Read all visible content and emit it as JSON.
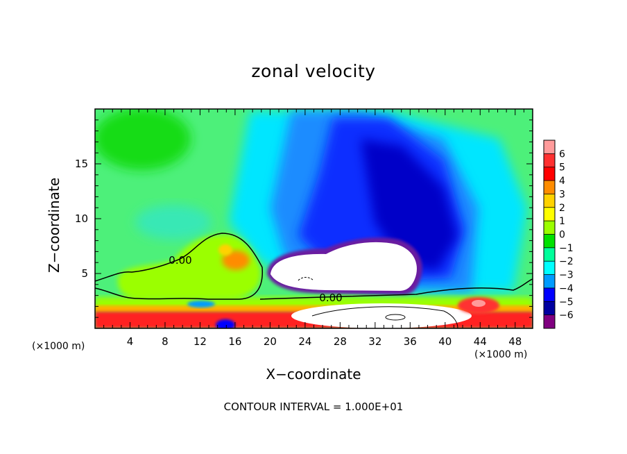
{
  "chart_data": {
    "type": "heatmap",
    "title": "zonal velocity",
    "xlabel": "X−coordinate",
    "ylabel": "Z−coordinate",
    "x_unit_left": "(×1000 m)",
    "x_unit_right": "(×1000 m)",
    "xlim": [
      0,
      50
    ],
    "ylim": [
      0,
      20
    ],
    "x_ticks": [
      4,
      8,
      12,
      16,
      20,
      24,
      28,
      32,
      36,
      40,
      44,
      48
    ],
    "y_ticks": [
      5,
      10,
      15
    ],
    "contour_labels": [
      "0.00",
      "0.00"
    ],
    "footnote": "CONTOUR INTERVAL = 1.000E+01",
    "colorbar": {
      "levels": [
        "6",
        "5",
        "4",
        "3",
        "2",
        "1",
        "0",
        "−1",
        "−2",
        "−3",
        "−4",
        "−5",
        "−6"
      ],
      "colors": [
        "#ff9b9b",
        "#ff3030",
        "#ff0000",
        "#ff8c00",
        "#ffd200",
        "#ffff00",
        "#9bff00",
        "#00e100",
        "#00ff9b",
        "#00ffff",
        "#009bff",
        "#0000ff",
        "#0000a0",
        "#800080"
      ]
    },
    "regions": [
      {
        "label": "background",
        "x": [
          0,
          50
        ],
        "z": [
          0,
          20
        ],
        "value": 0
      },
      {
        "label": "weak-positive-upper-left",
        "x": [
          4,
          9
        ],
        "z": [
          15,
          19
        ],
        "value": 0.5
      },
      {
        "label": "negative-jet-center",
        "x": [
          24,
          40
        ],
        "z": [
          4,
          18
        ],
        "value": -4
      },
      {
        "label": "strong-negative-core",
        "x": [
          31,
          38
        ],
        "z": [
          7,
          13
        ],
        "value": -5
      },
      {
        "label": "undefined-bubble",
        "x": [
          20,
          38
        ],
        "z": [
          3.5,
          8.3
        ],
        "value": null
      },
      {
        "label": "positive-low-left",
        "x": [
          3,
          19
        ],
        "z": [
          2,
          8.5
        ],
        "value": 1
      },
      {
        "label": "strong-positive-surface",
        "x": [
          0,
          50
        ],
        "z": [
          0,
          2.5
        ],
        "value": 4
      }
    ]
  }
}
